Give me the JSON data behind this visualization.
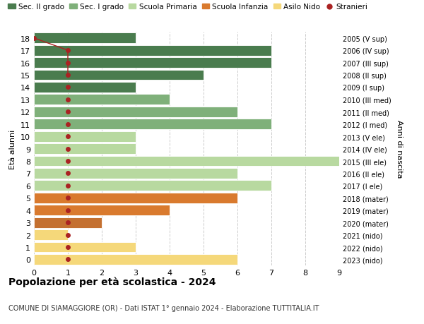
{
  "ages": [
    18,
    17,
    16,
    15,
    14,
    13,
    12,
    11,
    10,
    9,
    8,
    7,
    6,
    5,
    4,
    3,
    2,
    1,
    0
  ],
  "years": [
    "2005 (V sup)",
    "2006 (IV sup)",
    "2007 (III sup)",
    "2008 (II sup)",
    "2009 (I sup)",
    "2010 (III med)",
    "2011 (II med)",
    "2012 (I med)",
    "2013 (V ele)",
    "2014 (IV ele)",
    "2015 (III ele)",
    "2016 (II ele)",
    "2017 (I ele)",
    "2018 (mater)",
    "2019 (mater)",
    "2020 (mater)",
    "2021 (nido)",
    "2022 (nido)",
    "2023 (nido)"
  ],
  "bar_values": [
    3,
    7,
    7,
    5,
    3,
    4,
    6,
    7,
    3,
    3,
    9.3,
    6,
    7,
    6,
    4,
    2,
    1,
    3,
    6
  ],
  "bar_colors": [
    "#4a7c4e",
    "#4a7c4e",
    "#4a7c4e",
    "#4a7c4e",
    "#4a7c4e",
    "#7fb07a",
    "#7fb07a",
    "#7fb07a",
    "#b8d9a0",
    "#b8d9a0",
    "#b8d9a0",
    "#b8d9a0",
    "#b8d9a0",
    "#d97a2e",
    "#d97a2e",
    "#c47030",
    "#f5d87a",
    "#f5d87a",
    "#f5d87a"
  ],
  "colors": {
    "sec_II": "#4a7c4e",
    "sec_I": "#7fb07a",
    "primaria": "#b8d9a0",
    "infanzia": "#d97a2e",
    "nido": "#f5d87a",
    "stranieri": "#aa2222"
  },
  "stranieri_line_x": [
    0,
    1,
    1,
    1
  ],
  "stranieri_line_ages": [
    18,
    17,
    16,
    15
  ],
  "stranieri_dots": {
    "ages": [
      18,
      17,
      16,
      15,
      14,
      13,
      12,
      11,
      10,
      9,
      8,
      7,
      6,
      5,
      4,
      3,
      2,
      1,
      0
    ],
    "x": [
      0,
      1,
      1,
      1,
      1,
      1,
      1,
      1,
      1,
      1,
      1,
      1,
      1,
      1,
      1,
      1,
      1,
      1,
      1
    ]
  },
  "xlim": [
    0,
    9
  ],
  "ylim": [
    -0.5,
    18.5
  ],
  "title": "Popolazione per età scolastica - 2024",
  "subtitle": "COMUNE DI SIAMAGGIORE (OR) - Dati ISTAT 1° gennaio 2024 - Elaborazione TUTTITALIA.IT",
  "ylabel_left": "Età alunni",
  "ylabel_right": "Anni di nascita",
  "bg_color": "#ffffff",
  "grid_color": "#cccccc"
}
